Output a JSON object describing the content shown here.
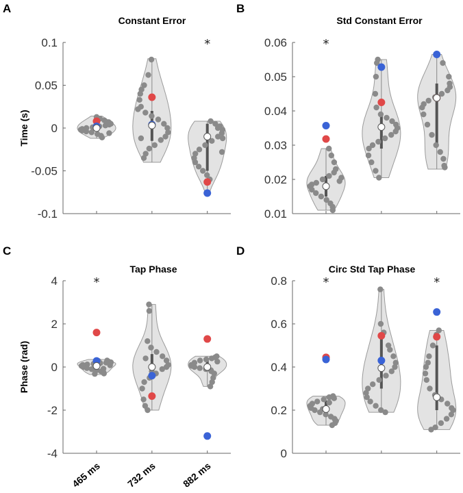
{
  "chart_data": [
    {
      "type": "violin",
      "letter": "A",
      "title": "Constant Error",
      "ylabel": "Time (s)",
      "ylim": [
        -0.1,
        0.1
      ],
      "yticks": [
        -0.1,
        -0.05,
        0,
        0.05,
        0.1
      ],
      "ytick_labels": [
        "-0.1",
        "-0.05",
        "0",
        "0.05",
        "0.1"
      ],
      "categories": [
        "465 ms",
        "732 ms",
        "882 ms"
      ],
      "show_categories": false,
      "significance": [
        "",
        "",
        "*"
      ],
      "groups": [
        {
          "median": 0.0,
          "q1": -0.004,
          "q3": 0.005,
          "min": -0.012,
          "max": 0.014,
          "red": 0.008,
          "blue": 0.002,
          "points": [
            0.013,
            0.011,
            0.009,
            0.007,
            0.005,
            0.004,
            0.003,
            0.002,
            0.001,
            0.0,
            -0.001,
            -0.002,
            -0.003,
            -0.004,
            -0.005,
            -0.007,
            -0.009,
            -0.011,
            0.006,
            -0.006
          ]
        },
        {
          "median": 0.003,
          "q1": -0.015,
          "q3": 0.02,
          "min": -0.04,
          "max": 0.081,
          "red": 0.036,
          "blue": 0.004,
          "points": [
            0.08,
            0.062,
            0.05,
            0.04,
            0.033,
            0.025,
            0.018,
            0.014,
            0.01,
            0.005,
            0.0,
            -0.005,
            -0.01,
            -0.014,
            -0.02,
            -0.024,
            -0.03,
            -0.035,
            0.045,
            0.022,
            -0.012
          ]
        },
        {
          "median": -0.01,
          "q1": -0.05,
          "q3": 0.005,
          "min": -0.075,
          "max": 0.008,
          "red": -0.063,
          "blue": -0.076,
          "points": [
            0.008,
            0.005,
            0.002,
            -0.002,
            -0.006,
            -0.01,
            -0.015,
            -0.02,
            -0.025,
            -0.03,
            -0.035,
            -0.04,
            -0.045,
            -0.05,
            -0.055,
            -0.06,
            0.0,
            -0.012,
            -0.028
          ]
        }
      ]
    },
    {
      "type": "violin",
      "letter": "B",
      "title": "Std Constant Error",
      "ylabel": "",
      "ylim": [
        0.01,
        0.06
      ],
      "yticks": [
        0.01,
        0.02,
        0.03,
        0.04,
        0.05,
        0.06
      ],
      "ytick_labels": [
        "0.01",
        "0.02",
        "0.03",
        "0.04",
        "0.05",
        "0.06"
      ],
      "categories": [
        "465 ms",
        "732 ms",
        "882 ms"
      ],
      "show_categories": false,
      "significance": [
        "*",
        "",
        ""
      ],
      "groups": [
        {
          "median": 0.018,
          "q1": 0.015,
          "q3": 0.021,
          "min": 0.011,
          "max": 0.029,
          "red": 0.0318,
          "blue": 0.0357,
          "points": [
            0.029,
            0.027,
            0.025,
            0.023,
            0.022,
            0.021,
            0.02,
            0.019,
            0.0185,
            0.018,
            0.017,
            0.016,
            0.015,
            0.014,
            0.013,
            0.012,
            0.011,
            0.0205,
            0.0195
          ]
        },
        {
          "median": 0.0353,
          "q1": 0.029,
          "q3": 0.039,
          "min": 0.0205,
          "max": 0.055,
          "red": 0.0425,
          "blue": 0.0528,
          "points": [
            0.055,
            0.054,
            0.05,
            0.045,
            0.041,
            0.039,
            0.038,
            0.037,
            0.036,
            0.035,
            0.034,
            0.033,
            0.032,
            0.031,
            0.03,
            0.029,
            0.027,
            0.025,
            0.0225,
            0.0205
          ]
        },
        {
          "median": 0.0438,
          "q1": 0.03,
          "q3": 0.048,
          "min": 0.023,
          "max": 0.0565,
          "red": 0.0438,
          "blue": 0.0565,
          "points": [
            0.054,
            0.05,
            0.048,
            0.046,
            0.045,
            0.044,
            0.043,
            0.042,
            0.041,
            0.039,
            0.036,
            0.033,
            0.03,
            0.028,
            0.026,
            0.024,
            0.0235,
            0.047
          ]
        }
      ]
    },
    {
      "type": "violin",
      "letter": "C",
      "title": "Tap Phase",
      "ylabel": "Phase (rad)",
      "ylim": [
        -4,
        4
      ],
      "yticks": [
        -4,
        -2,
        0,
        2,
        4
      ],
      "ytick_labels": [
        "-4",
        "-2",
        "0",
        "2",
        "4"
      ],
      "categories": [
        "465 ms",
        "732 ms",
        "882 ms"
      ],
      "show_categories": true,
      "significance": [
        "*",
        "",
        ""
      ],
      "groups": [
        {
          "median": 0.05,
          "q1": -0.1,
          "q3": 0.2,
          "min": -0.35,
          "max": 0.35,
          "red": 1.6,
          "blue": 0.28,
          "points": [
            0.3,
            0.25,
            0.2,
            0.18,
            0.15,
            0.12,
            0.1,
            0.05,
            0.0,
            -0.05,
            -0.1,
            -0.15,
            -0.2,
            -0.25,
            -0.3,
            0.22,
            0.08,
            -0.08,
            0.28,
            -0.32
          ]
        },
        {
          "median": 0.0,
          "q1": -0.5,
          "q3": 0.6,
          "min": -2.0,
          "max": 2.9,
          "red": -1.35,
          "blue": -0.4,
          "points": [
            2.9,
            2.6,
            1.2,
            0.9,
            0.7,
            0.5,
            0.3,
            0.1,
            0.0,
            -0.1,
            -0.3,
            -0.5,
            -0.7,
            -1.0,
            -1.5,
            -1.8,
            -2.0,
            0.4,
            -0.2
          ]
        },
        {
          "median": 0.0,
          "q1": -0.2,
          "q3": 0.3,
          "min": -0.9,
          "max": 0.5,
          "red": 1.3,
          "blue": -3.2,
          "points": [
            0.5,
            0.45,
            0.4,
            0.35,
            0.3,
            0.2,
            0.1,
            0.05,
            0.0,
            -0.05,
            -0.1,
            -0.2,
            -0.3,
            -0.5,
            -0.7,
            -0.9,
            0.25,
            -0.15
          ]
        }
      ]
    },
    {
      "type": "violin",
      "letter": "D",
      "title": "Circ Std Tap Phase",
      "ylabel": "",
      "ylim": [
        0,
        0.8
      ],
      "yticks": [
        0,
        0.2,
        0.4,
        0.6,
        0.8
      ],
      "ytick_labels": [
        "0",
        "0.2",
        "0.4",
        "0.6",
        "0.8"
      ],
      "categories": [
        "465 ms",
        "732 ms",
        "882 ms"
      ],
      "show_categories": false,
      "significance": [
        "*",
        "",
        "*"
      ],
      "groups": [
        {
          "median": 0.205,
          "q1": 0.175,
          "q3": 0.245,
          "min": 0.13,
          "max": 0.265,
          "red": 0.445,
          "blue": 0.435,
          "points": [
            0.265,
            0.26,
            0.25,
            0.24,
            0.23,
            0.22,
            0.21,
            0.2,
            0.19,
            0.18,
            0.17,
            0.16,
            0.15,
            0.14,
            0.13,
            0.255,
            0.235,
            0.205
          ]
        },
        {
          "median": 0.395,
          "q1": 0.3,
          "q3": 0.53,
          "min": 0.19,
          "max": 0.76,
          "red": 0.545,
          "blue": 0.43,
          "points": [
            0.76,
            0.6,
            0.56,
            0.5,
            0.45,
            0.42,
            0.4,
            0.38,
            0.36,
            0.34,
            0.32,
            0.3,
            0.28,
            0.26,
            0.24,
            0.22,
            0.2,
            0.19,
            0.48
          ]
        },
        {
          "median": 0.26,
          "q1": 0.2,
          "q3": 0.5,
          "min": 0.11,
          "max": 0.57,
          "red": 0.54,
          "blue": 0.655,
          "points": [
            0.57,
            0.55,
            0.5,
            0.45,
            0.4,
            0.37,
            0.34,
            0.3,
            0.27,
            0.25,
            0.23,
            0.21,
            0.2,
            0.18,
            0.16,
            0.14,
            0.12,
            0.11,
            0.42
          ]
        }
      ]
    }
  ],
  "colors": {
    "violin_fill": "#e3e3e3",
    "violin_stroke": "#9a9a9a",
    "point": "#8a8a8a",
    "red": "#e04848",
    "blue": "#3a63d6",
    "median_fill": "#ffffff",
    "iqr": "#555555",
    "axis": "#666666"
  }
}
